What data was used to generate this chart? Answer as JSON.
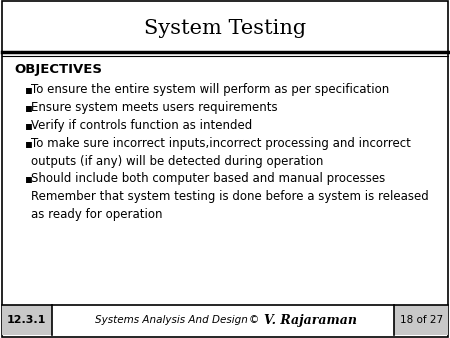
{
  "title": "System Testing",
  "bg_color": "#ffffff",
  "title_color": "#000000",
  "text_color": "#000000",
  "slide_number": "12.3.1",
  "footer_left": "Systems Analysis And Design",
  "footer_copyright": "©",
  "footer_author": "V. Rajaraman",
  "footer_right": "18 of 27",
  "objectives_title": "OBJECTIVES",
  "bullet_lines": [
    "To ensure the entire system will perform as per specification",
    "Ensure system meets users requirements",
    "Verify if controls function as intended",
    "To make sure incorrect inputs,incorrect processing and incorrect",
    "outputs (if any) will be detected during operation",
    "Should include both computer based and manual processes",
    "Remember that system testing is done before a system is released",
    "as ready for operation"
  ],
  "bullet_flags": [
    true,
    true,
    true,
    true,
    false,
    true,
    false,
    false
  ],
  "title_fontsize": 15,
  "body_fontsize": 8.5,
  "obj_fontsize": 9.5,
  "footer_fontsize": 7.5
}
